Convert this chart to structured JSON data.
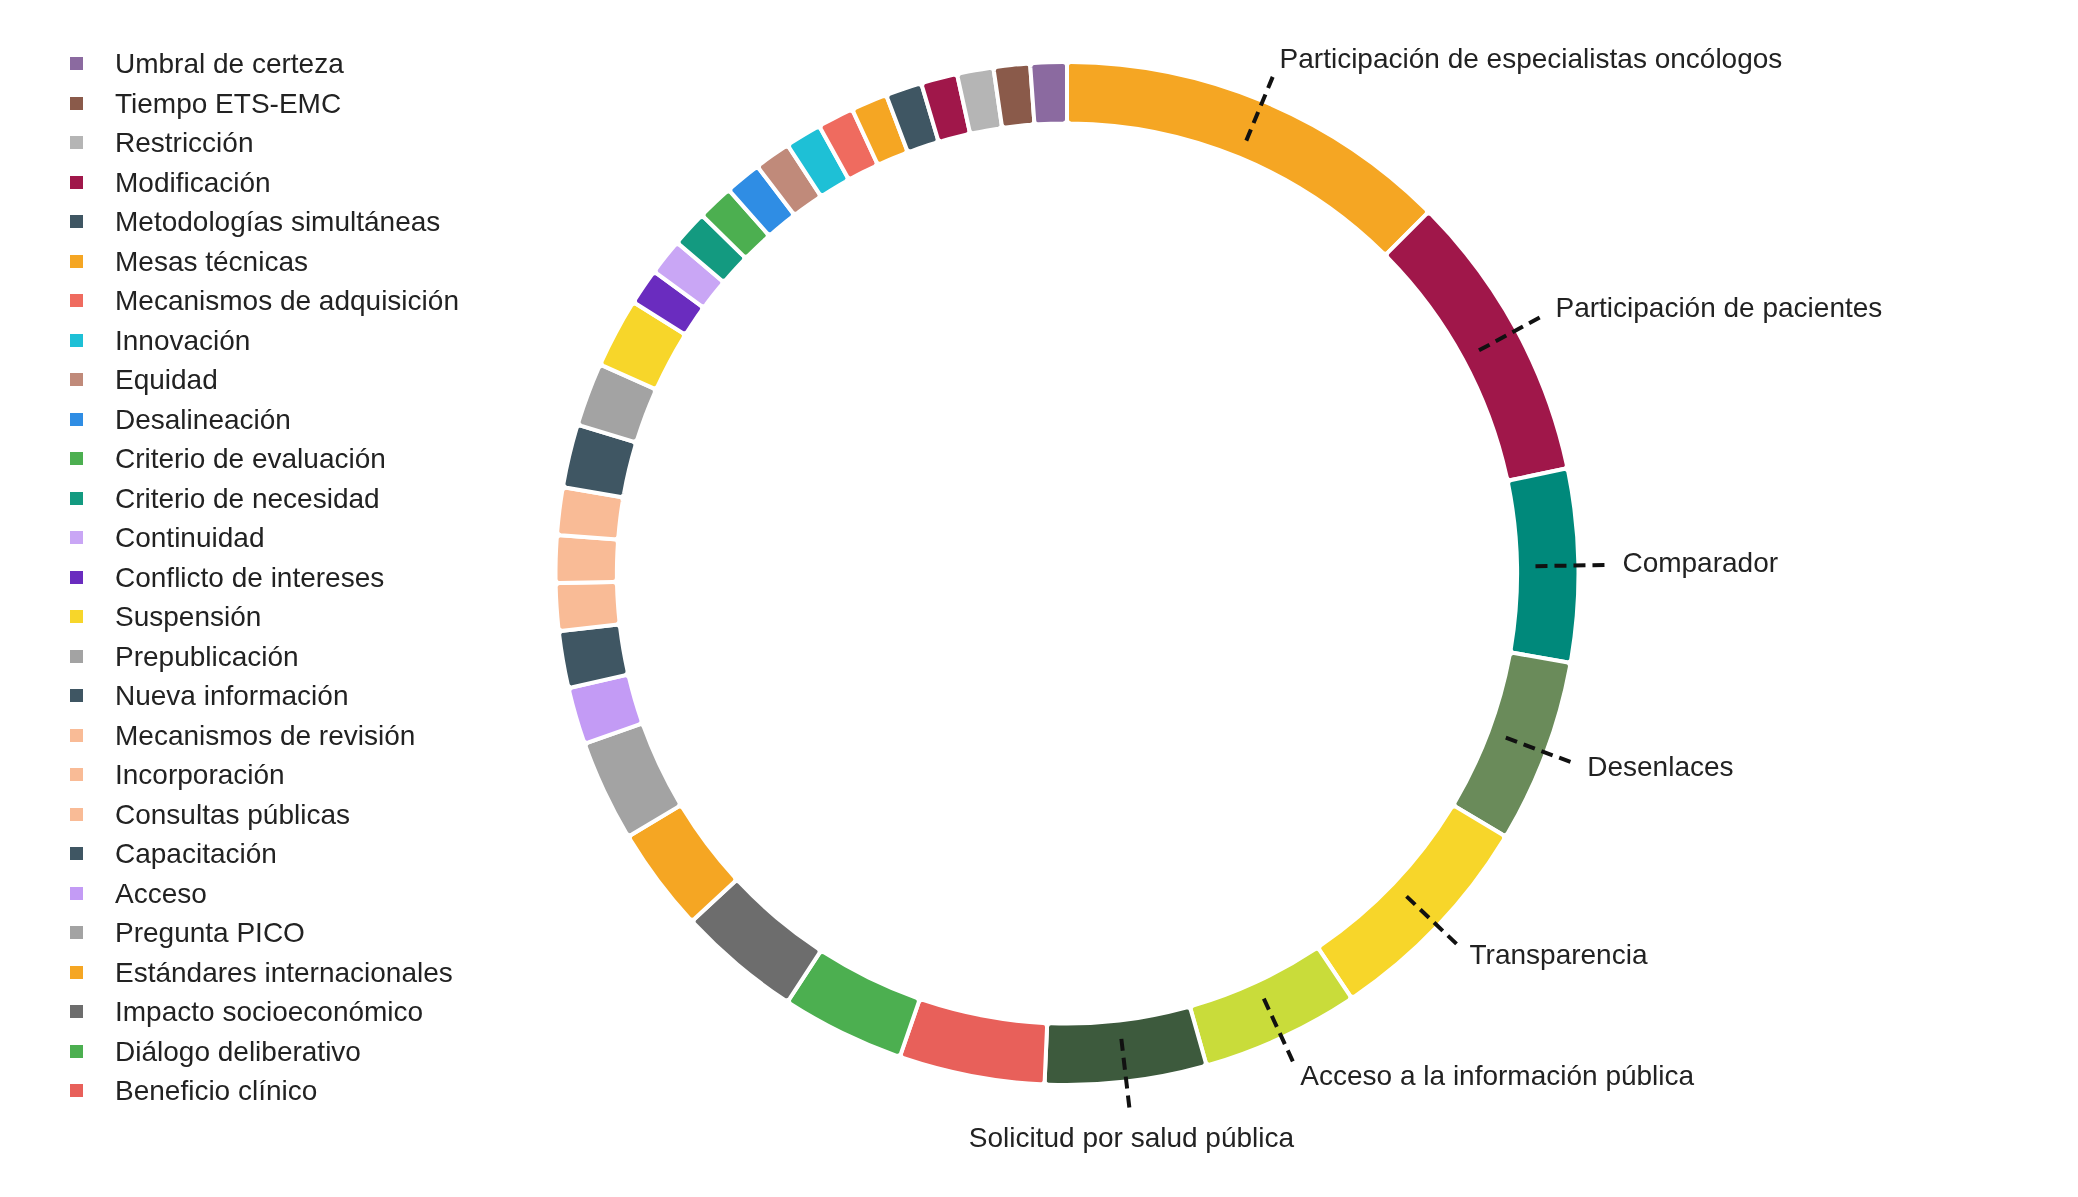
{
  "chart_data": {
    "type": "donut",
    "legend": "left",
    "categories": [
      "Participación de especialistas oncólogos",
      "Participación de pacientes",
      "Comparador",
      "Desenlaces",
      "Transparencia",
      "Acceso a la información pública",
      "Solicitud por salud pública",
      "Beneficio clínico",
      "Diálogo deliberativo",
      "Impacto socioeconómico",
      "Estándares internacionales",
      "Pregunta PICO",
      "Acceso",
      "Capacitación",
      "Consultas públicas",
      "Incorporación",
      "Mecanismos de revisión",
      "Nueva información",
      "Prepublicación",
      "Suspensión",
      "Conflicto de intereses",
      "Continuidad",
      "Criterio de necesidad",
      "Criterio de evaluación",
      "Desalineación",
      "Equidad",
      "Innovación",
      "Mecanismos de adquisición",
      "Mesas técnicas",
      "Metodologías simultáneas",
      "Modificación",
      "Restricción",
      "Tiempo ETS-EMC",
      "Umbral de certeza"
    ],
    "values": [
      12.5,
      9.2,
      6.1,
      5.8,
      7,
      5,
      5.1,
      4.6,
      3.9,
      3.9,
      3.3,
      3.2,
      1.8,
      1.8,
      1.5,
      1.5,
      1.5,
      2,
      2,
      2.2,
      1.15,
      1.15,
      1.15,
      1.15,
      1.15,
      1.15,
      1.15,
      1.15,
      1.15,
      1.15,
      1.15,
      1.15,
      1.15,
      1.15
    ],
    "colors": [
      "#f5a623",
      "#a0174a",
      "#00897b",
      "#6a8b5a",
      "#f7d62a",
      "#c9dc3a",
      "#3d5a3d",
      "#e8605a",
      "#4caf50",
      "#6d6d6d",
      "#f5a623",
      "#a3a3a3",
      "#c39bf5",
      "#3f5663",
      "#f9bb96",
      "#f9bb96",
      "#f9bb96",
      "#3f5663",
      "#a3a3a3",
      "#f7d62a",
      "#6a2cbf",
      "#c9a6f5",
      "#139a80",
      "#4caf50",
      "#2f8de4",
      "#c08a7a",
      "#1ec0d6",
      "#ef6b5f",
      "#f5a623",
      "#3f5663",
      "#a0174a",
      "#b5b5b5",
      "#8a5a4a",
      "#8b6aa0"
    ]
  }
}
